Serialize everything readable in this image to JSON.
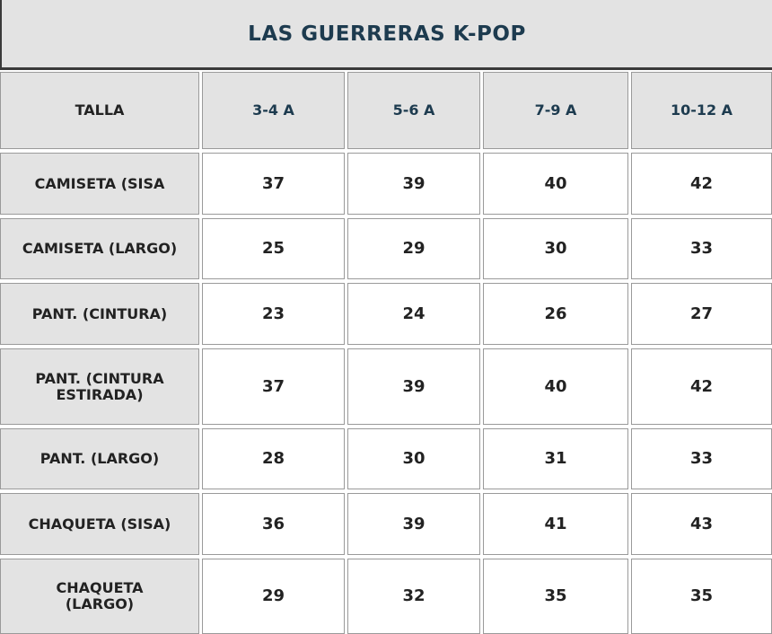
{
  "header": {
    "title": "LAS GUERRERAS K-POP"
  },
  "table": {
    "columns": [
      "TALLA",
      "3-4 A",
      "5-6 A",
      "7-9 A",
      "10-12 A"
    ],
    "rows": [
      [
        "CAMISETA (SISA",
        37,
        39,
        40,
        42
      ],
      [
        "CAMISETA (LARGO)",
        25,
        29,
        30,
        33
      ],
      [
        "PANT. (CINTURA)",
        23,
        24,
        26,
        27
      ],
      [
        "PANT. (CINTURA ESTIRADA)",
        37,
        39,
        40,
        42
      ],
      [
        "PANT. (LARGO)",
        28,
        30,
        31,
        33
      ],
      [
        "CHAQUETA (SISA)",
        36,
        39,
        41,
        43
      ],
      [
        "CHAQUETA (LARGO)",
        29,
        32,
        35,
        35
      ]
    ]
  }
}
